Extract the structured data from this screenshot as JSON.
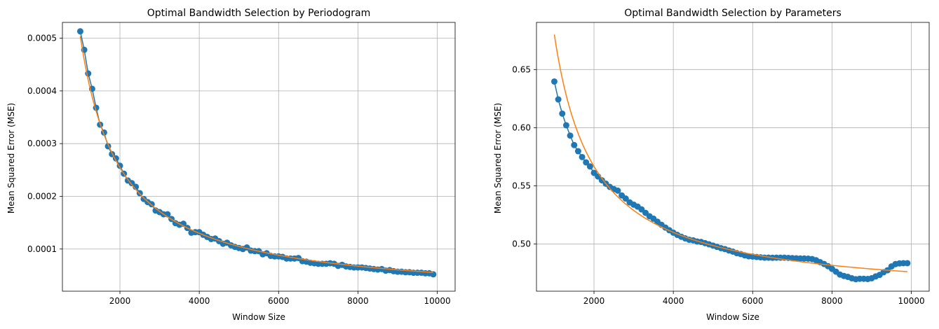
{
  "figure": {
    "background": "#ffffff",
    "grid_color": "#b0b0b0",
    "axis_color": "#000000"
  },
  "chart_data": [
    {
      "type": "line",
      "title": "Optimal Bandwidth Selection by Periodogram",
      "xlabel": "Window Size",
      "ylabel": "Mean Squared Error (MSE)",
      "xlim": [
        550,
        10450
      ],
      "ylim": [
        2e-05,
        0.00053
      ],
      "xticks": [
        2000,
        4000,
        6000,
        8000,
        10000
      ],
      "xtick_labels": [
        "2000",
        "4000",
        "6000",
        "8000",
        "10000"
      ],
      "yticks": [
        0.0001,
        0.0002,
        0.0003,
        0.0004,
        0.0005
      ],
      "ytick_labels": [
        "0.0001",
        "0.0002",
        "0.0003",
        "0.0004",
        "0.0005"
      ],
      "grid": true,
      "legend": "none",
      "series": [
        {
          "kind": "markers-line",
          "color": "#1f77b4",
          "x": [
            1000,
            1100,
            1200,
            1300,
            1400,
            1500,
            1600,
            1700,
            1800,
            1900,
            2000,
            2100,
            2200,
            2300,
            2400,
            2500,
            2600,
            2700,
            2800,
            2900,
            3000,
            3100,
            3200,
            3300,
            3400,
            3500,
            3600,
            3700,
            3800,
            3900,
            4000,
            4100,
            4200,
            4300,
            4400,
            4500,
            4600,
            4700,
            4800,
            4900,
            5000,
            5100,
            5200,
            5300,
            5400,
            5500,
            5600,
            5700,
            5800,
            5900,
            6000,
            6100,
            6200,
            6300,
            6400,
            6500,
            6600,
            6700,
            6800,
            6900,
            7000,
            7100,
            7200,
            7300,
            7400,
            7500,
            7600,
            7700,
            7800,
            7900,
            8000,
            8100,
            8200,
            8300,
            8400,
            8500,
            8600,
            8700,
            8800,
            8900,
            9000,
            9100,
            9200,
            9300,
            9400,
            9500,
            9600,
            9700,
            9800,
            9900
          ],
          "y": [
            0.000513,
            0.000478,
            0.000433,
            0.000404,
            0.000368,
            0.000336,
            0.000321,
            0.000295,
            0.00028,
            0.000272,
            0.000258,
            0.000243,
            0.00023,
            0.000225,
            0.000218,
            0.000206,
            0.000195,
            0.000189,
            0.000185,
            0.000173,
            0.00017,
            0.000166,
            0.000166,
            0.000157,
            0.000149,
            0.000146,
            0.000148,
            0.00014,
            0.000131,
            0.000132,
            0.000132,
            0.000127,
            0.000123,
            0.000119,
            0.00012,
            0.000115,
            0.00011,
            0.000112,
            0.000107,
            0.000104,
            0.000102,
            0.0001,
            0.000103,
            9.7e-05,
            9.6e-05,
            9.6e-05,
            9e-05,
            9.2e-05,
            8.7e-05,
            8.6e-05,
            8.6e-05,
            8.5e-05,
            8.2e-05,
            8.2e-05,
            8.2e-05,
            8.3e-05,
            7.7e-05,
            7.6e-05,
            7.4e-05,
            7.3e-05,
            7.2e-05,
            7.2e-05,
            7.2e-05,
            7.3e-05,
            7.2e-05,
            6.8e-05,
            7e-05,
            6.7e-05,
            6.6e-05,
            6.5e-05,
            6.5e-05,
            6.5e-05,
            6.4e-05,
            6.3e-05,
            6.2e-05,
            6.1e-05,
            6.2e-05,
            5.9e-05,
            6e-05,
            5.8e-05,
            5.7e-05,
            5.7e-05,
            5.6e-05,
            5.6e-05,
            5.5e-05,
            5.5e-05,
            5.5e-05,
            5.4e-05,
            5.4e-05,
            5.2e-05
          ]
        },
        {
          "kind": "line",
          "color": "#ff7f0e",
          "fit": {
            "form": "a/x + c",
            "a": 0.4988,
            "c": 5.2e-06,
            "x_range": [
              1000,
              9900
            ]
          }
        }
      ]
    },
    {
      "type": "line",
      "title": "Optimal Bandwidth Selection by Parameters",
      "xlabel": "Window Size",
      "ylabel": "Mean Squared Error (MSE)",
      "xlim": [
        550,
        10450
      ],
      "ylim": [
        0.4595,
        0.6905
      ],
      "xticks": [
        2000,
        4000,
        6000,
        8000,
        10000
      ],
      "xtick_labels": [
        "2000",
        "4000",
        "6000",
        "8000",
        "10000"
      ],
      "yticks": [
        0.5,
        0.55,
        0.6,
        0.65
      ],
      "ytick_labels": [
        "0.50",
        "0.55",
        "0.60",
        "0.65"
      ],
      "grid": true,
      "legend": "none",
      "series": [
        {
          "kind": "markers-line",
          "color": "#1f77b4",
          "x": [
            1000,
            1100,
            1200,
            1300,
            1400,
            1500,
            1600,
            1700,
            1800,
            1900,
            2000,
            2100,
            2200,
            2300,
            2400,
            2500,
            2600,
            2700,
            2800,
            2900,
            3000,
            3100,
            3200,
            3300,
            3400,
            3500,
            3600,
            3700,
            3800,
            3900,
            4000,
            4100,
            4200,
            4300,
            4400,
            4500,
            4600,
            4700,
            4800,
            4900,
            5000,
            5100,
            5200,
            5300,
            5400,
            5500,
            5600,
            5700,
            5800,
            5900,
            6000,
            6100,
            6200,
            6300,
            6400,
            6500,
            6600,
            6700,
            6800,
            6900,
            7000,
            7100,
            7200,
            7300,
            7400,
            7500,
            7600,
            7700,
            7800,
            7900,
            8000,
            8100,
            8200,
            8300,
            8400,
            8500,
            8600,
            8700,
            8800,
            8900,
            9000,
            9100,
            9200,
            9300,
            9400,
            9500,
            9600,
            9700,
            9800,
            9900
          ],
          "y": [
            0.6397,
            0.6243,
            0.6121,
            0.6021,
            0.5932,
            0.5851,
            0.5798,
            0.5748,
            0.5702,
            0.5667,
            0.5612,
            0.5581,
            0.5548,
            0.5519,
            0.5491,
            0.5472,
            0.5459,
            0.5418,
            0.5391,
            0.5358,
            0.5339,
            0.5322,
            0.5298,
            0.5268,
            0.5239,
            0.5218,
            0.5192,
            0.5166,
            0.5142,
            0.5119,
            0.5098,
            0.5079,
            0.5063,
            0.5049,
            0.5037,
            0.5032,
            0.5022,
            0.5018,
            0.5008,
            0.4998,
            0.4987,
            0.4976,
            0.4965,
            0.4957,
            0.4945,
            0.4935,
            0.4922,
            0.4914,
            0.4903,
            0.4895,
            0.4893,
            0.4889,
            0.4886,
            0.4883,
            0.4883,
            0.4882,
            0.4883,
            0.4883,
            0.4883,
            0.4881,
            0.4879,
            0.4878,
            0.4876,
            0.4876,
            0.4875,
            0.4871,
            0.4861,
            0.4845,
            0.4829,
            0.481,
            0.4787,
            0.4763,
            0.4738,
            0.4726,
            0.4718,
            0.4706,
            0.4698,
            0.4702,
            0.4702,
            0.47,
            0.4706,
            0.4722,
            0.4735,
            0.4758,
            0.4775,
            0.4808,
            0.4828,
            0.4834,
            0.4836,
            0.4836
          ]
        },
        {
          "kind": "line",
          "color": "#ff7f0e",
          "fit": {
            "form": "a/x + c",
            "a": 226.7,
            "c": 0.4534,
            "x_range": [
              1000,
              9900
            ]
          }
        }
      ]
    }
  ]
}
